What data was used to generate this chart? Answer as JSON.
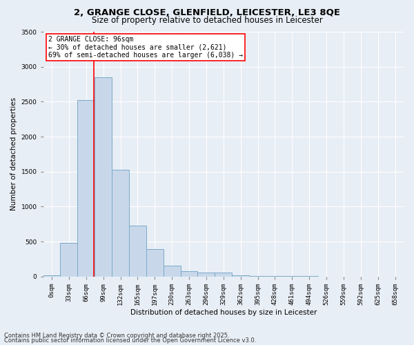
{
  "title1": "2, GRANGE CLOSE, GLENFIELD, LEICESTER, LE3 8QE",
  "title2": "Size of property relative to detached houses in Leicester",
  "xlabel": "Distribution of detached houses by size in Leicester",
  "ylabel": "Number of detached properties",
  "categories": [
    "0sqm",
    "33sqm",
    "66sqm",
    "99sqm",
    "132sqm",
    "165sqm",
    "197sqm",
    "230sqm",
    "263sqm",
    "296sqm",
    "329sqm",
    "362sqm",
    "395sqm",
    "428sqm",
    "461sqm",
    "494sqm",
    "526sqm",
    "559sqm",
    "592sqm",
    "625sqm",
    "658sqm"
  ],
  "bar_heights": [
    20,
    480,
    2520,
    2850,
    1530,
    730,
    390,
    150,
    75,
    55,
    55,
    20,
    10,
    5,
    5,
    5,
    0,
    0,
    0,
    0,
    0
  ],
  "bar_color": "#c8d8ea",
  "bar_edge_color": "#7aaac8",
  "bar_edge_width": 0.7,
  "vline_x": 2.97,
  "vline_color": "red",
  "vline_linewidth": 1.2,
  "annotation_title": "2 GRANGE CLOSE: 96sqm",
  "annotation_line1": "← 30% of detached houses are smaller (2,621)",
  "annotation_line2": "69% of semi-detached houses are larger (6,038) →",
  "annotation_box_color": "red",
  "annotation_bg": "white",
  "ylim": [
    0,
    3500
  ],
  "yticks": [
    0,
    500,
    1000,
    1500,
    2000,
    2500,
    3000,
    3500
  ],
  "background_color": "#e8eef5",
  "plot_bg_color": "#e8eef5",
  "grid_color": "white",
  "footer1": "Contains HM Land Registry data © Crown copyright and database right 2025.",
  "footer2": "Contains public sector information licensed under the Open Government Licence v3.0.",
  "title_fontsize": 9.5,
  "subtitle_fontsize": 8.5,
  "axis_label_fontsize": 7.5,
  "tick_fontsize": 6.5,
  "footer_fontsize": 6,
  "annotation_fontsize": 7
}
